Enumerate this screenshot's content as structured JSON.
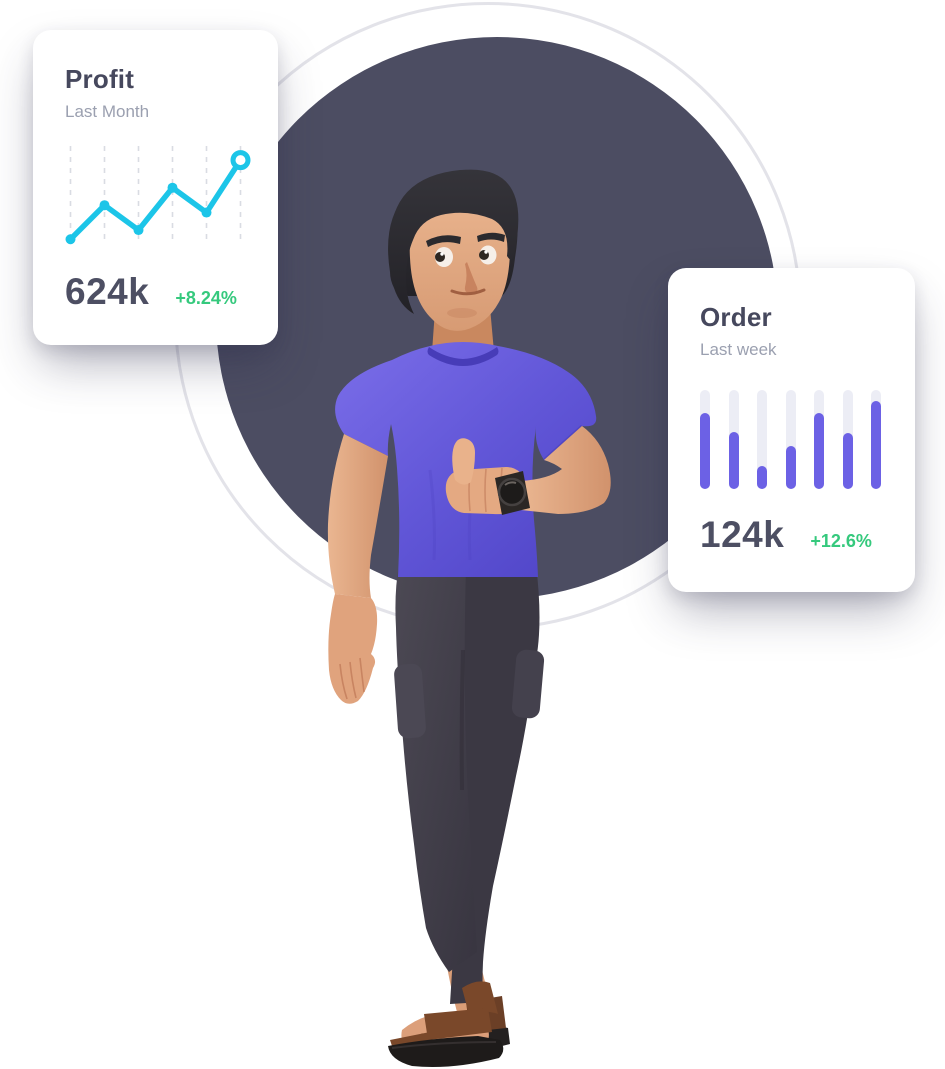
{
  "colors": {
    "background_circle": "#4c4d62",
    "ring_outline": "#e3e3e9",
    "card_background": "#ffffff",
    "title_dark": "#46485d",
    "subtitle_gray": "#9ba0b0",
    "value_dark": "#4d4f63",
    "positive_green": "#35c97d",
    "line_cyan": "#1cc5e8",
    "bar_purple": "#6c61e5",
    "bar_track": "#ecedf5",
    "shirt_purple": "#6257d8"
  },
  "cards": {
    "profit": {
      "title": "Profit",
      "subtitle": "Last Month",
      "value": "624k",
      "change": "+8.24%"
    },
    "order": {
      "title": "Order",
      "subtitle": "Last week",
      "value": "124k",
      "change": "+12.6%"
    }
  },
  "chart_data": [
    {
      "type": "line",
      "title": "Profit",
      "period": "Last Month",
      "series": [
        {
          "name": "Profit",
          "values": [
            3,
            40,
            13,
            59,
            32,
            89
          ]
        }
      ],
      "x": [
        1,
        2,
        3,
        4,
        5,
        6
      ],
      "ylim": [
        0,
        100
      ],
      "axis_labels_visible": false,
      "grid": "dashed-vertical",
      "grid_color": "#d9dce3",
      "line_color": "#1cc5e8",
      "end_marker": "open-ring",
      "value_label": "624k",
      "change_label": "+8.24%"
    },
    {
      "type": "bar",
      "title": "Order",
      "period": "Last week",
      "categories": [
        "1",
        "2",
        "3",
        "4",
        "5",
        "6",
        "7"
      ],
      "values": [
        77,
        58,
        23,
        43,
        77,
        57,
        89
      ],
      "ylim": [
        0,
        100
      ],
      "axis_labels_visible": false,
      "bar_color": "#6c61e5",
      "track_color": "#ecedf5",
      "rounded_bars": true,
      "value_label": "124k",
      "change_label": "+12.6%"
    }
  ],
  "illustration": {
    "description": "3D cartoon man with dark hair, purple t-shirt, dark pants and brown sandals giving a thumbs-up, wearing a black wristwatch, standing in front of a large dark slate circle with a thin light ring"
  }
}
